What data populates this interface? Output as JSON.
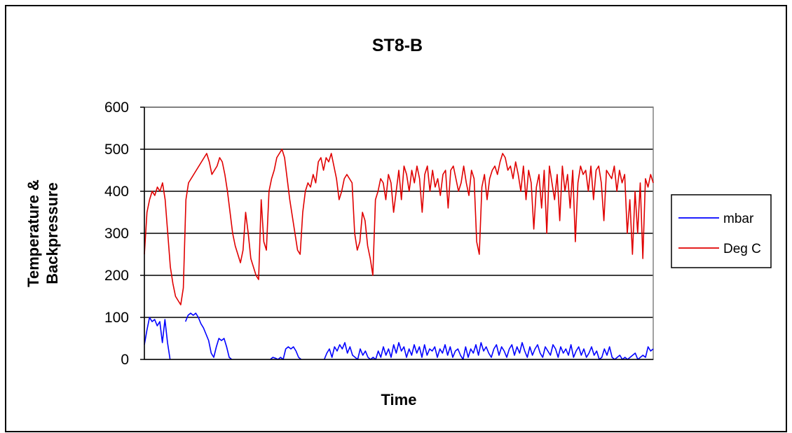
{
  "chart_data": {
    "type": "line",
    "title": "ST8-B",
    "xlabel": "Time",
    "ylabel": [
      "Temperature &",
      "Backpressure"
    ],
    "ylim": [
      0,
      600
    ],
    "yticks": [
      "0",
      "100",
      "200",
      "300",
      "400",
      "500",
      "600"
    ],
    "grid": true,
    "legend_position": "right",
    "series": [
      {
        "name": "mbar",
        "color": "#0000ff",
        "values": [
          35,
          70,
          100,
          90,
          95,
          80,
          90,
          40,
          95,
          40,
          0,
          null,
          null,
          null,
          null,
          null,
          90,
          105,
          110,
          105,
          110,
          100,
          85,
          75,
          60,
          45,
          15,
          5,
          30,
          50,
          45,
          50,
          30,
          5,
          0,
          null,
          null,
          null,
          null,
          null,
          null,
          null,
          null,
          null,
          null,
          null,
          null,
          null,
          null,
          0,
          5,
          3,
          0,
          5,
          0,
          25,
          30,
          25,
          30,
          20,
          5,
          0,
          null,
          null,
          null,
          null,
          null,
          null,
          null,
          null,
          0,
          15,
          25,
          5,
          30,
          20,
          35,
          25,
          40,
          15,
          30,
          10,
          5,
          0,
          25,
          10,
          20,
          5,
          0,
          5,
          0,
          20,
          5,
          30,
          10,
          25,
          5,
          35,
          15,
          40,
          20,
          30,
          5,
          25,
          10,
          35,
          15,
          30,
          5,
          35,
          10,
          25,
          20,
          30,
          5,
          25,
          15,
          35,
          10,
          30,
          5,
          20,
          25,
          10,
          0,
          30,
          5,
          25,
          15,
          35,
          10,
          40,
          20,
          30,
          15,
          5,
          25,
          35,
          10,
          30,
          20,
          5,
          25,
          35,
          10,
          30,
          15,
          40,
          20,
          5,
          30,
          10,
          25,
          35,
          15,
          5,
          30,
          20,
          10,
          35,
          25,
          5,
          30,
          15,
          25,
          10,
          35,
          5,
          20,
          30,
          10,
          25,
          5,
          15,
          30,
          10,
          20,
          0,
          5,
          25,
          10,
          30,
          5,
          0,
          5,
          10,
          0,
          5,
          0,
          5,
          10,
          15,
          0,
          5,
          10,
          5,
          30,
          20,
          25
        ]
      },
      {
        "name": "Deg C",
        "color": "#e00000",
        "values": [
          250,
          350,
          380,
          400,
          390,
          410,
          400,
          420,
          380,
          300,
          220,
          180,
          150,
          140,
          130,
          170,
          380,
          420,
          430,
          440,
          450,
          460,
          470,
          480,
          490,
          470,
          440,
          450,
          460,
          480,
          470,
          440,
          400,
          350,
          300,
          270,
          250,
          230,
          260,
          350,
          300,
          240,
          220,
          200,
          190,
          380,
          280,
          260,
          400,
          430,
          450,
          480,
          490,
          500,
          480,
          430,
          380,
          340,
          300,
          260,
          250,
          350,
          400,
          420,
          410,
          440,
          420,
          470,
          480,
          450,
          480,
          470,
          490,
          460,
          430,
          380,
          400,
          430,
          440,
          430,
          420,
          300,
          260,
          280,
          350,
          330,
          270,
          240,
          200,
          380,
          400,
          430,
          420,
          380,
          440,
          420,
          350,
          400,
          450,
          380,
          460,
          440,
          400,
          450,
          420,
          460,
          430,
          350,
          440,
          460,
          400,
          450,
          410,
          430,
          390,
          440,
          450,
          360,
          450,
          460,
          430,
          400,
          420,
          460,
          420,
          390,
          450,
          430,
          280,
          250,
          410,
          440,
          380,
          430,
          450,
          460,
          440,
          470,
          490,
          480,
          450,
          460,
          430,
          470,
          440,
          400,
          460,
          380,
          450,
          420,
          310,
          410,
          440,
          360,
          450,
          300,
          460,
          420,
          380,
          440,
          330,
          460,
          400,
          440,
          360,
          450,
          280,
          420,
          460,
          440,
          450,
          400,
          460,
          380,
          450,
          460,
          420,
          330,
          450,
          440,
          430,
          460,
          400,
          450,
          420,
          440,
          300,
          380,
          250,
          400,
          300,
          420,
          240,
          430,
          410,
          440,
          420
        ]
      }
    ]
  }
}
